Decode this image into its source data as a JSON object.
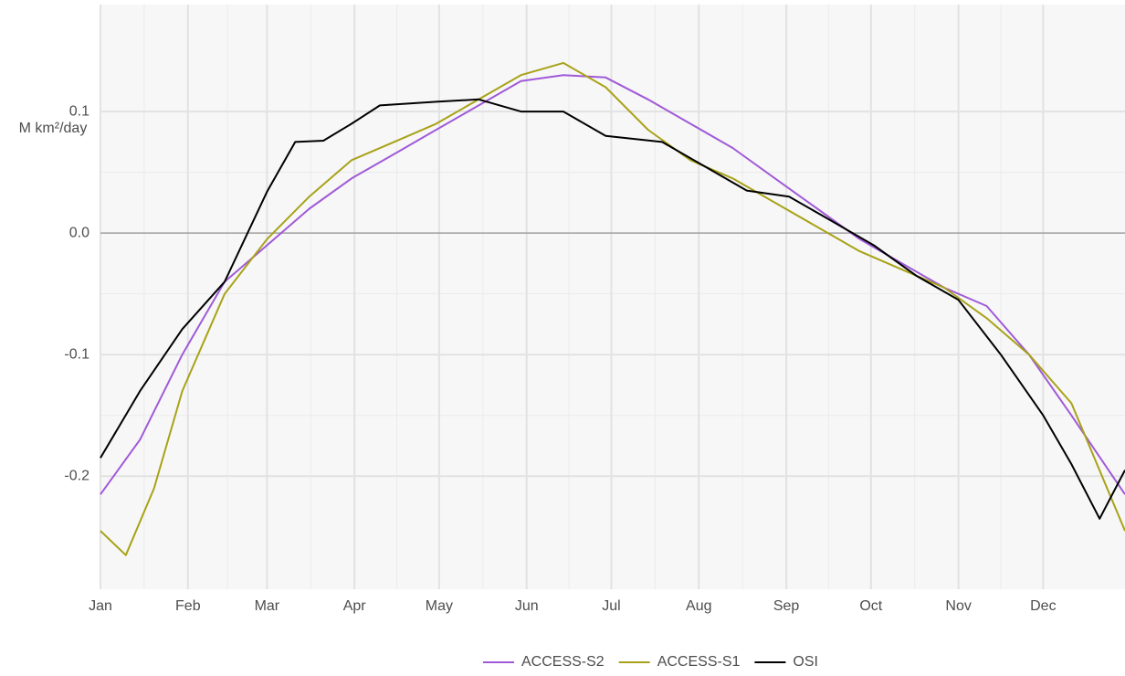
{
  "chart_data": {
    "type": "line",
    "y_label": "M km²/day",
    "xlim": [
      1,
      364
    ],
    "xticks": [
      {
        "value": 1,
        "label": "Jan"
      },
      {
        "value": 32,
        "label": "Feb"
      },
      {
        "value": 60,
        "label": "Mar"
      },
      {
        "value": 91,
        "label": "Apr"
      },
      {
        "value": 121,
        "label": "May"
      },
      {
        "value": 152,
        "label": "Jun"
      },
      {
        "value": 182,
        "label": "Jul"
      },
      {
        "value": 213,
        "label": "Aug"
      },
      {
        "value": 244,
        "label": "Sep"
      },
      {
        "value": 274,
        "label": "Oct"
      },
      {
        "value": 305,
        "label": "Nov"
      },
      {
        "value": 335,
        "label": "Dec"
      }
    ],
    "ylim": [
      -0.293,
      0.188
    ],
    "yticks": [
      -0.2,
      -0.1,
      {
        "value": 0,
        "label": "0.0"
      },
      0.1
    ],
    "grid": true,
    "minor_grid": true,
    "zero_line": true,
    "legend": "bottom",
    "series": [
      {
        "name": "ACCESS-S2",
        "color": "#a05ad8",
        "x": [
          1,
          15,
          30,
          45,
          60,
          75,
          90,
          105,
          120,
          135,
          150,
          165,
          180,
          195,
          210,
          225,
          240,
          255,
          270,
          285,
          300,
          315,
          330,
          345,
          364
        ],
        "values": [
          -0.215,
          -0.17,
          -0.1,
          -0.04,
          -0.01,
          0.02,
          0.045,
          0.065,
          0.085,
          0.105,
          0.125,
          0.13,
          0.128,
          0.11,
          0.09,
          0.07,
          0.045,
          0.02,
          -0.005,
          -0.025,
          -0.045,
          -0.06,
          -0.1,
          -0.15,
          -0.215
        ]
      },
      {
        "name": "ACCESS-S1",
        "color": "#a8a218",
        "x": [
          1,
          10,
          20,
          30,
          45,
          60,
          75,
          90,
          105,
          120,
          135,
          150,
          165,
          180,
          195,
          210,
          225,
          240,
          255,
          270,
          285,
          300,
          315,
          330,
          345,
          364
        ],
        "values": [
          -0.245,
          -0.265,
          -0.21,
          -0.13,
          -0.05,
          -0.005,
          0.03,
          0.06,
          0.075,
          0.09,
          0.11,
          0.13,
          0.14,
          0.12,
          0.085,
          0.06,
          0.045,
          0.025,
          0.005,
          -0.015,
          -0.03,
          -0.045,
          -0.07,
          -0.1,
          -0.14,
          -0.245
        ]
      },
      {
        "name": "OSI",
        "color": "#000000",
        "x": [
          1,
          15,
          30,
          45,
          60,
          70,
          80,
          90,
          100,
          120,
          135,
          150,
          165,
          180,
          200,
          215,
          230,
          245,
          260,
          275,
          290,
          305,
          320,
          335,
          345,
          355,
          364
        ],
        "values": [
          -0.185,
          -0.13,
          -0.079,
          -0.04,
          0.034,
          0.075,
          0.076,
          0.09,
          0.105,
          0.108,
          0.11,
          0.1,
          0.1,
          0.08,
          0.075,
          0.055,
          0.035,
          0.03,
          0.01,
          -0.01,
          -0.035,
          -0.055,
          -0.1,
          -0.15,
          -0.19,
          -0.235,
          -0.195
        ]
      }
    ]
  }
}
